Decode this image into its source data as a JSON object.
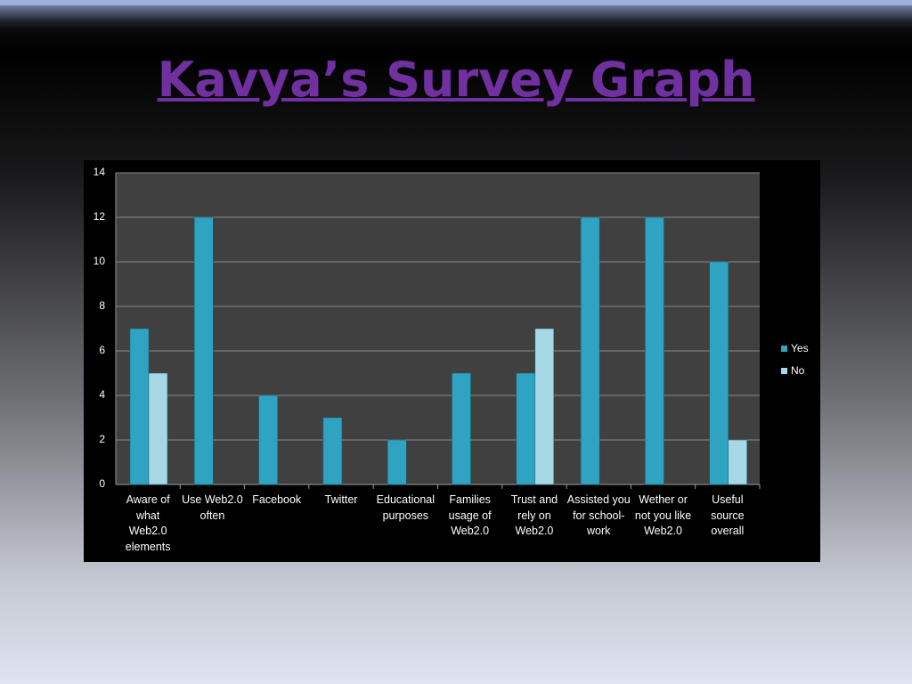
{
  "chart_data": {
    "type": "bar",
    "title": "Kavya’s Survey Graph",
    "categories": [
      "Aware of what Web2.0 elements",
      "Use Web2.0 often",
      "Facebook",
      "Twitter",
      "Educational purposes",
      "Families usage of Web2.0",
      "Trust and rely on Web2.0",
      "Assisted you for school-work",
      "Wether or not you like Web2.0",
      "Useful source overall"
    ],
    "series": [
      {
        "name": "Yes",
        "color": "#2fa3c2",
        "values": [
          7,
          12,
          4,
          3,
          2,
          5,
          5,
          12,
          12,
          10
        ]
      },
      {
        "name": "No",
        "color": "#a6d8e6",
        "values": [
          5,
          0,
          0,
          0,
          0,
          0,
          7,
          0,
          0,
          2
        ]
      }
    ],
    "ylim": [
      0,
      14
    ],
    "yticks": [
      0,
      2,
      4,
      6,
      8,
      10,
      12,
      14
    ],
    "grid": true,
    "legend": "right"
  }
}
